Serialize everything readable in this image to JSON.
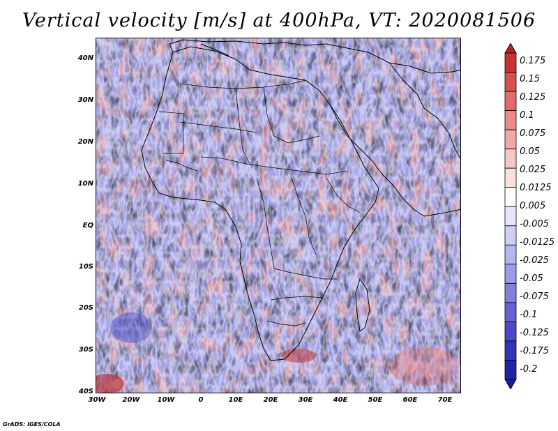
{
  "title": "Vertical velocity [m/s] at 400hPa, VT: 2020081506",
  "map": {
    "region": "Africa and surrounding oceans",
    "lat_labels": [
      "40N",
      "30N",
      "20N",
      "10N",
      "EQ",
      "10S",
      "20S",
      "30S",
      "40S"
    ],
    "lon_labels": [
      "30W",
      "20W",
      "10W",
      "0",
      "10E",
      "20E",
      "30E",
      "40E",
      "50E",
      "60E",
      "70E"
    ]
  },
  "colorbar": {
    "labels": [
      "0.175",
      "0.15",
      "0.125",
      "0.1",
      "0.075",
      "0.05",
      "0.025",
      "0.0125",
      "0.005",
      "-0.005",
      "-0.0125",
      "-0.025",
      "-0.05",
      "-0.075",
      "-0.1",
      "-0.125",
      "-0.175",
      "-0.2"
    ],
    "colors": [
      "#b22222",
      "#c83232",
      "#d85050",
      "#e46b6b",
      "#ec8a8a",
      "#f2a8a8",
      "#f7c6c6",
      "#fbe0e0",
      "#ffffff",
      "#e6e6fa",
      "#cfcff5",
      "#b6b6ee",
      "#9b9be6",
      "#8080dd",
      "#6464d2",
      "#4a4ac6",
      "#3333b8",
      "#2222a6",
      "#1a1a96"
    ]
  },
  "credit": "GrADS: IGES/COLA"
}
